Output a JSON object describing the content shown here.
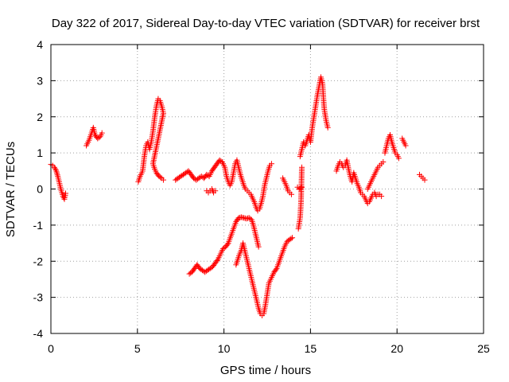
{
  "chart_data": {
    "type": "scatter",
    "title": "Day 322 of 2017, Sidereal Day-to-day VTEC variation (SDTVAR) for receiver brst",
    "xlabel": "GPS time / hours",
    "ylabel": "SDTVAR / TECUs",
    "xlim": [
      0,
      25
    ],
    "ylim": [
      -4,
      4
    ],
    "xticks": [
      0,
      5,
      10,
      15,
      20,
      25
    ],
    "yticks": [
      -4,
      -3,
      -2,
      -1,
      0,
      1,
      2,
      3,
      4
    ],
    "grid": true,
    "marker": "+",
    "color": "#ff0000",
    "segments": [
      [
        [
          0.0,
          0.68
        ],
        [
          0.1,
          0.65
        ],
        [
          0.2,
          0.6
        ],
        [
          0.3,
          0.52
        ],
        [
          0.4,
          0.35
        ],
        [
          0.5,
          0.15
        ],
        [
          0.6,
          -0.05
        ],
        [
          0.7,
          -0.2
        ],
        [
          0.78,
          -0.28
        ],
        [
          0.85,
          -0.12
        ]
      ],
      [
        [
          2.05,
          1.2
        ],
        [
          2.2,
          1.35
        ],
        [
          2.35,
          1.55
        ],
        [
          2.45,
          1.7
        ],
        [
          2.55,
          1.5
        ],
        [
          2.7,
          1.4
        ],
        [
          2.85,
          1.45
        ],
        [
          2.95,
          1.55
        ]
      ],
      [
        [
          5.05,
          0.2
        ],
        [
          5.15,
          0.35
        ],
        [
          5.3,
          0.5
        ],
        [
          5.4,
          0.9
        ],
        [
          5.5,
          1.2
        ],
        [
          5.6,
          1.3
        ],
        [
          5.7,
          1.1
        ],
        [
          5.8,
          1.3
        ],
        [
          5.9,
          1.6
        ],
        [
          6.0,
          2.0
        ],
        [
          6.1,
          2.3
        ],
        [
          6.2,
          2.5
        ],
        [
          6.3,
          2.45
        ],
        [
          6.4,
          2.3
        ],
        [
          6.5,
          2.1
        ],
        [
          5.9,
          0.7
        ],
        [
          6.0,
          0.55
        ],
        [
          6.1,
          0.45
        ],
        [
          6.25,
          0.35
        ],
        [
          6.4,
          0.3
        ],
        [
          6.5,
          0.25
        ]
      ],
      [
        [
          7.2,
          0.25
        ],
        [
          7.35,
          0.3
        ],
        [
          7.5,
          0.35
        ],
        [
          7.65,
          0.4
        ],
        [
          7.8,
          0.45
        ],
        [
          7.95,
          0.5
        ],
        [
          8.1,
          0.4
        ],
        [
          8.25,
          0.3
        ],
        [
          8.4,
          0.25
        ],
        [
          8.55,
          0.3
        ],
        [
          8.7,
          0.35
        ],
        [
          8.85,
          0.3
        ],
        [
          9.0,
          0.4
        ],
        [
          9.15,
          0.35
        ],
        [
          9.3,
          0.5
        ],
        [
          9.45,
          0.6
        ],
        [
          9.6,
          0.7
        ],
        [
          9.75,
          0.8
        ],
        [
          9.9,
          0.75
        ],
        [
          10.05,
          0.6
        ],
        [
          10.15,
          0.35
        ],
        [
          10.25,
          0.2
        ],
        [
          10.35,
          0.1
        ],
        [
          10.45,
          0.2
        ],
        [
          10.55,
          0.45
        ],
        [
          10.65,
          0.7
        ],
        [
          10.75,
          0.8
        ],
        [
          10.85,
          0.6
        ],
        [
          10.95,
          0.4
        ],
        [
          11.05,
          0.25
        ],
        [
          11.15,
          0.1
        ],
        [
          11.25,
          0.0
        ],
        [
          11.35,
          -0.05
        ],
        [
          11.45,
          -0.1
        ],
        [
          11.55,
          -0.15
        ],
        [
          11.65,
          -0.25
        ],
        [
          11.75,
          -0.35
        ],
        [
          11.85,
          -0.5
        ],
        [
          11.95,
          -0.6
        ],
        [
          12.05,
          -0.55
        ],
        [
          12.15,
          -0.4
        ],
        [
          12.25,
          -0.2
        ],
        [
          12.35,
          0.1
        ],
        [
          12.45,
          0.3
        ],
        [
          12.55,
          0.5
        ],
        [
          12.65,
          0.65
        ],
        [
          12.75,
          0.7
        ]
      ],
      [
        [
          9.0,
          -0.05
        ],
        [
          9.1,
          -0.1
        ],
        [
          9.2,
          -0.05
        ],
        [
          9.3,
          0.0
        ],
        [
          9.4,
          -0.1
        ],
        [
          9.5,
          -0.05
        ]
      ],
      [
        [
          8.0,
          -2.35
        ],
        [
          8.15,
          -2.3
        ],
        [
          8.3,
          -2.2
        ],
        [
          8.45,
          -2.1
        ],
        [
          8.6,
          -2.2
        ],
        [
          8.75,
          -2.25
        ],
        [
          8.9,
          -2.3
        ],
        [
          9.05,
          -2.25
        ],
        [
          9.2,
          -2.2
        ],
        [
          9.35,
          -2.15
        ],
        [
          9.5,
          -2.05
        ],
        [
          9.65,
          -1.95
        ],
        [
          9.8,
          -1.8
        ],
        [
          9.95,
          -1.65
        ],
        [
          10.1,
          -1.6
        ],
        [
          10.25,
          -1.5
        ],
        [
          10.4,
          -1.3
        ],
        [
          10.55,
          -1.1
        ],
        [
          10.7,
          -0.9
        ],
        [
          10.85,
          -0.8
        ],
        [
          11.0,
          -0.78
        ],
        [
          11.15,
          -0.8
        ],
        [
          11.3,
          -0.82
        ],
        [
          11.45,
          -0.8
        ],
        [
          11.6,
          -0.85
        ],
        [
          11.7,
          -1.0
        ],
        [
          11.8,
          -1.2
        ],
        [
          11.9,
          -1.4
        ],
        [
          12.0,
          -1.6
        ]
      ],
      [
        [
          10.7,
          -2.1
        ],
        [
          10.8,
          -1.95
        ],
        [
          10.9,
          -1.8
        ],
        [
          11.0,
          -1.7
        ],
        [
          11.1,
          -1.5
        ],
        [
          11.2,
          -1.7
        ],
        [
          11.3,
          -1.9
        ],
        [
          11.4,
          -2.1
        ],
        [
          11.5,
          -2.3
        ],
        [
          11.6,
          -2.5
        ],
        [
          11.7,
          -2.7
        ],
        [
          11.8,
          -2.9
        ],
        [
          11.9,
          -3.1
        ],
        [
          12.0,
          -3.3
        ],
        [
          12.1,
          -3.45
        ],
        [
          12.2,
          -3.5
        ],
        [
          12.3,
          -3.45
        ],
        [
          12.4,
          -3.2
        ],
        [
          12.5,
          -2.9
        ],
        [
          12.6,
          -2.6
        ],
        [
          12.75,
          -2.45
        ],
        [
          12.9,
          -2.3
        ],
        [
          13.05,
          -2.2
        ],
        [
          13.2,
          -2.0
        ],
        [
          13.35,
          -1.8
        ],
        [
          13.5,
          -1.6
        ],
        [
          13.65,
          -1.45
        ],
        [
          13.8,
          -1.4
        ],
        [
          13.95,
          -1.35
        ]
      ],
      [
        [
          13.4,
          0.3
        ],
        [
          13.5,
          0.2
        ],
        [
          13.6,
          0.1
        ],
        [
          13.7,
          -0.05
        ],
        [
          13.8,
          -0.1
        ],
        [
          13.9,
          -0.15
        ]
      ],
      [
        [
          14.3,
          -1.1
        ],
        [
          14.4,
          -0.8
        ],
        [
          14.45,
          -0.4
        ],
        [
          14.5,
          0.6
        ]
      ],
      [
        [
          14.4,
          0.9
        ],
        [
          14.5,
          1.1
        ],
        [
          14.6,
          1.3
        ],
        [
          14.7,
          1.2
        ],
        [
          14.8,
          1.35
        ],
        [
          14.9,
          1.5
        ],
        [
          15.0,
          1.3
        ],
        [
          15.1,
          1.7
        ],
        [
          15.2,
          2.0
        ],
        [
          15.3,
          2.3
        ],
        [
          15.4,
          2.6
        ],
        [
          15.5,
          2.85
        ],
        [
          15.6,
          3.1
        ],
        [
          15.7,
          2.9
        ],
        [
          15.75,
          2.5
        ],
        [
          15.8,
          2.2
        ],
        [
          15.9,
          1.9
        ],
        [
          16.0,
          1.7
        ]
      ],
      [
        [
          14.25,
          0.05
        ],
        [
          14.35,
          0.0
        ],
        [
          14.5,
          0.05
        ]
      ],
      [
        [
          16.5,
          0.5
        ],
        [
          16.6,
          0.65
        ],
        [
          16.7,
          0.75
        ],
        [
          16.8,
          0.7
        ],
        [
          16.9,
          0.6
        ],
        [
          17.0,
          0.65
        ],
        [
          17.1,
          0.8
        ],
        [
          17.2,
          0.55
        ],
        [
          17.3,
          0.35
        ],
        [
          17.4,
          0.2
        ],
        [
          17.5,
          0.45
        ],
        [
          17.6,
          0.3
        ],
        [
          17.7,
          0.15
        ],
        [
          17.8,
          0.05
        ],
        [
          17.9,
          -0.1
        ],
        [
          18.0,
          -0.15
        ],
        [
          18.1,
          -0.2
        ],
        [
          18.2,
          -0.3
        ],
        [
          18.3,
          -0.4
        ],
        [
          18.4,
          -0.35
        ],
        [
          18.5,
          -0.25
        ],
        [
          18.6,
          -0.15
        ],
        [
          18.7,
          -0.1
        ],
        [
          18.8,
          -0.2
        ],
        [
          18.9,
          -0.15
        ],
        [
          19.0,
          -0.15
        ],
        [
          19.1,
          -0.2
        ]
      ],
      [
        [
          18.3,
          0.0
        ],
        [
          18.4,
          0.1
        ],
        [
          18.5,
          0.2
        ],
        [
          18.6,
          0.3
        ],
        [
          18.7,
          0.4
        ],
        [
          18.8,
          0.5
        ],
        [
          18.9,
          0.6
        ],
        [
          19.0,
          0.65
        ],
        [
          19.1,
          0.7
        ],
        [
          19.2,
          0.75
        ]
      ],
      [
        [
          19.3,
          1.0
        ],
        [
          19.4,
          1.2
        ],
        [
          19.5,
          1.4
        ],
        [
          19.6,
          1.5
        ],
        [
          19.7,
          1.3
        ],
        [
          19.8,
          1.15
        ],
        [
          19.9,
          1.0
        ],
        [
          20.0,
          0.95
        ],
        [
          20.1,
          0.85
        ]
      ],
      [
        [
          20.3,
          1.4
        ],
        [
          20.4,
          1.3
        ],
        [
          20.5,
          1.2
        ]
      ],
      [
        [
          21.3,
          0.4
        ],
        [
          21.4,
          0.35
        ],
        [
          21.5,
          0.3
        ],
        [
          21.6,
          0.25
        ]
      ]
    ]
  }
}
